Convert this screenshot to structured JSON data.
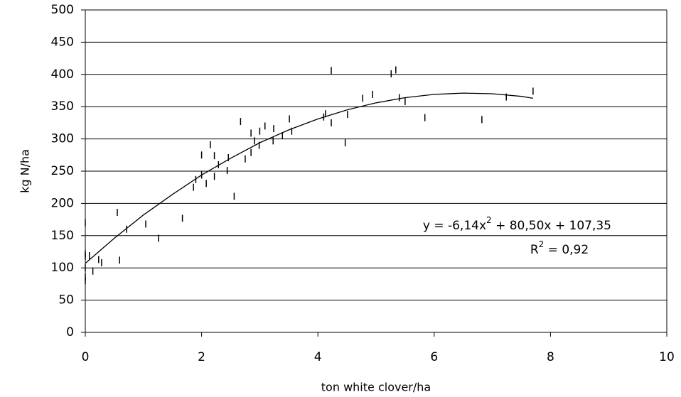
{
  "chart_data": {
    "type": "scatter",
    "x_label": "ton white clover/ha",
    "y_label": "kg N/ha",
    "xlim": [
      0,
      10
    ],
    "xticks": [
      0,
      2,
      4,
      6,
      8,
      10
    ],
    "ylim": [
      0,
      500
    ],
    "yticks": [
      0,
      50,
      100,
      150,
      200,
      250,
      300,
      350,
      400,
      450,
      500
    ],
    "grid": true,
    "color": "#000000",
    "x": [
      0,
      0,
      0,
      0,
      0,
      0,
      0.07,
      0.13,
      0.23,
      0.28,
      0.55,
      0.59,
      0.71,
      1.04,
      1.26,
      1.67,
      1.86,
      1.9,
      2.0,
      2.0,
      2.08,
      2.15,
      2.22,
      2.22,
      2.29,
      2.44,
      2.46,
      2.56,
      2.67,
      2.75,
      2.85,
      2.85,
      2.91,
      2.99,
      3.0,
      3.09,
      3.23,
      3.24,
      3.39,
      3.51,
      3.55,
      4.1,
      4.13,
      4.23,
      4.23,
      4.47,
      4.51,
      4.77,
      4.94,
      5.26,
      5.34,
      5.4,
      5.5,
      5.84,
      6.82,
      7.24,
      7.7
    ],
    "values": [
      170,
      122,
      118,
      100,
      86,
      80,
      119,
      95,
      113,
      108,
      186,
      112,
      160,
      168,
      146,
      177,
      225,
      237,
      244,
      275,
      231,
      291,
      242,
      274,
      260,
      251,
      271,
      211,
      327,
      269,
      309,
      279,
      297,
      290,
      312,
      320,
      297,
      316,
      305,
      331,
      312,
      334,
      339,
      406,
      325,
      294,
      338,
      363,
      369,
      401,
      407,
      364,
      358,
      333,
      330,
      365,
      374
    ],
    "trendline": {
      "x": [
        0,
        0.5,
        1,
        1.5,
        2,
        2.5,
        3,
        3.5,
        4,
        4.5,
        5,
        5.5,
        6,
        6.5,
        7,
        7.5,
        7.7
      ],
      "values": [
        107,
        146,
        182,
        214,
        244,
        270,
        294,
        314,
        331,
        345,
        356,
        364,
        369,
        371,
        370,
        366,
        363
      ]
    },
    "equation": [
      "y = -6,14x",
      "2",
      " + 80,50x + 107,35"
    ],
    "r_squared": [
      "R",
      "2",
      " = 0,92"
    ]
  }
}
